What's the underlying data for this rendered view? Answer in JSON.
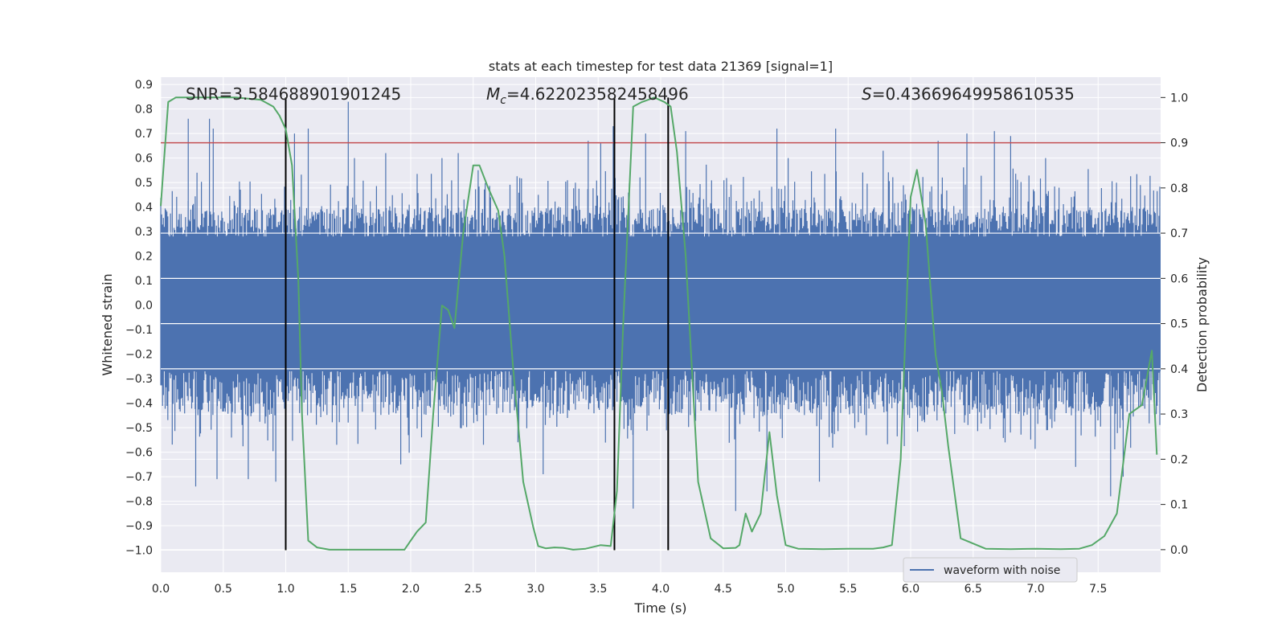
{
  "chart_data": {
    "type": "line",
    "title": "stats at each timestep for test data 21369 [signal=1]",
    "xlabel": "Time (s)",
    "ylabel": "Whitened strain",
    "y2label": "Detection probability",
    "xlim": [
      0.0,
      8.0
    ],
    "ylim": [
      -1.09,
      0.93
    ],
    "y2lim": [
      -0.05,
      1.045
    ],
    "xticks": [
      0.0,
      0.5,
      1.0,
      1.5,
      2.0,
      2.5,
      3.0,
      3.5,
      4.0,
      4.5,
      5.0,
      5.5,
      6.0,
      6.5,
      7.0,
      7.5
    ],
    "yticks": [
      0.9,
      0.8,
      0.7,
      0.6,
      0.5,
      0.4,
      0.3,
      0.2,
      0.1,
      0.0,
      -0.1,
      -0.2,
      -0.3,
      -0.4,
      -0.5,
      -0.6,
      -0.7,
      -0.8,
      -0.9,
      -1.0
    ],
    "y2ticks": [
      1.0,
      0.9,
      0.8,
      0.7,
      0.6,
      0.5,
      0.4,
      0.3,
      0.2,
      0.1,
      0.0
    ],
    "threshold": 0.9,
    "vlines": [
      1.0,
      3.63,
      4.06
    ],
    "annotations": {
      "snr": "SNR=3.584688901901245",
      "mc_symbol": "M",
      "mc_sub": "c",
      "mc_value": "=4.622023582458496",
      "s_symbol": "S",
      "s_value": "=0.43669649958610535"
    },
    "legend": {
      "label": "waveform with noise",
      "location": "lower-right"
    },
    "series": [
      {
        "name": "waveform with noise",
        "axis": "left",
        "description": "whitened strain noise, dense, amplitude mostly within about -0.55 to 0.6",
        "envelope": {
          "typical_upper": 0.4,
          "typical_lower": -0.45,
          "max": 0.83,
          "min": -0.84
        },
        "spikes": [
          [
            0.22,
            0.76
          ],
          [
            0.39,
            0.76
          ],
          [
            0.42,
            0.72
          ],
          [
            0.28,
            -0.74
          ],
          [
            0.45,
            -0.71
          ],
          [
            0.7,
            -0.71
          ],
          [
            0.92,
            -0.72
          ],
          [
            1.07,
            0.7
          ],
          [
            1.18,
            0.72
          ],
          [
            1.5,
            0.83
          ],
          [
            1.55,
            0.6
          ],
          [
            1.8,
            0.62
          ],
          [
            1.92,
            -0.65
          ],
          [
            2.25,
            0.6
          ],
          [
            2.38,
            0.62
          ],
          [
            3.06,
            -0.69
          ],
          [
            3.42,
            0.67
          ],
          [
            3.52,
            0.66
          ],
          [
            3.62,
            0.73
          ],
          [
            3.78,
            -0.83
          ],
          [
            3.88,
            0.7
          ],
          [
            4.2,
            0.71
          ],
          [
            4.6,
            -0.84
          ],
          [
            4.85,
            -0.76
          ],
          [
            4.93,
            0.72
          ],
          [
            5.02,
            0.6
          ],
          [
            5.27,
            -0.72
          ],
          [
            5.4,
            0.72
          ],
          [
            5.78,
            0.63
          ],
          [
            6.22,
            0.67
          ],
          [
            6.45,
            0.7
          ],
          [
            6.67,
            0.71
          ],
          [
            6.8,
            0.69
          ],
          [
            7.08,
            0.6
          ],
          [
            7.32,
            -0.66
          ],
          [
            7.6,
            -0.78
          ],
          [
            7.7,
            -0.7
          ]
        ]
      },
      {
        "name": "detection probability",
        "axis": "right",
        "color": "#55a868",
        "x": [
          0.0,
          0.06,
          0.12,
          0.2,
          0.4,
          0.6,
          0.8,
          0.9,
          0.95,
          1.0,
          1.05,
          1.1,
          1.13,
          1.18,
          1.25,
          1.35,
          1.5,
          1.7,
          1.85,
          1.95,
          2.0,
          2.05,
          2.12,
          2.18,
          2.25,
          2.3,
          2.35,
          2.42,
          2.5,
          2.55,
          2.62,
          2.7,
          2.75,
          2.82,
          2.9,
          2.98,
          3.02,
          3.08,
          3.15,
          3.22,
          3.3,
          3.4,
          3.52,
          3.6,
          3.65,
          3.7,
          3.78,
          3.85,
          3.95,
          4.03,
          4.08,
          4.13,
          4.2,
          4.3,
          4.4,
          4.5,
          4.6,
          4.63,
          4.68,
          4.73,
          4.8,
          4.87,
          4.93,
          5.0,
          5.1,
          5.3,
          5.5,
          5.7,
          5.78,
          5.85,
          5.92,
          6.0,
          6.05,
          6.12,
          6.2,
          6.25,
          6.3,
          6.4,
          6.6,
          6.8,
          7.0,
          7.2,
          7.35,
          7.45,
          7.55,
          7.65,
          7.75,
          7.85,
          7.93,
          7.97
        ],
        "values": [
          0.76,
          0.99,
          1.0,
          1.0,
          1.0,
          1.0,
          0.995,
          0.98,
          0.96,
          0.93,
          0.85,
          0.6,
          0.3,
          0.02,
          0.005,
          0.0,
          0.0,
          0.0,
          0.0,
          0.0,
          0.02,
          0.04,
          0.06,
          0.3,
          0.54,
          0.53,
          0.49,
          0.7,
          0.85,
          0.85,
          0.8,
          0.75,
          0.65,
          0.4,
          0.15,
          0.05,
          0.008,
          0.003,
          0.005,
          0.004,
          0.0,
          0.002,
          0.01,
          0.008,
          0.13,
          0.5,
          0.98,
          0.99,
          1.0,
          0.99,
          0.98,
          0.88,
          0.65,
          0.15,
          0.025,
          0.003,
          0.004,
          0.01,
          0.08,
          0.04,
          0.08,
          0.26,
          0.12,
          0.01,
          0.002,
          0.001,
          0.002,
          0.002,
          0.005,
          0.01,
          0.2,
          0.78,
          0.84,
          0.72,
          0.43,
          0.35,
          0.23,
          0.025,
          0.002,
          0.001,
          0.002,
          0.001,
          0.002,
          0.01,
          0.03,
          0.08,
          0.3,
          0.32,
          0.44,
          0.21
        ]
      }
    ]
  }
}
